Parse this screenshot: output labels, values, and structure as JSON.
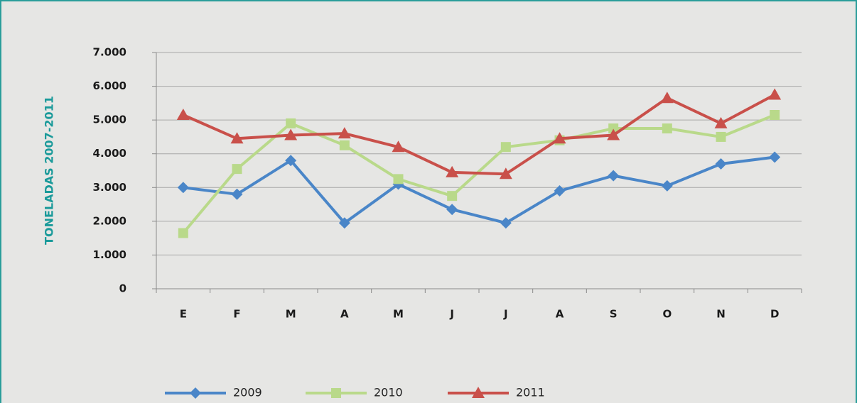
{
  "chart_data": {
    "type": "line",
    "ylabel": "TONELADAS 2007-2011",
    "categories": [
      "E",
      "F",
      "M",
      "A",
      "M",
      "J",
      "J",
      "A",
      "S",
      "O",
      "N",
      "D"
    ],
    "series": [
      {
        "name": "2009",
        "color": "#4a86c8",
        "marker": "diamond",
        "values": [
          3000,
          2800,
          3800,
          1950,
          3100,
          2350,
          1950,
          2900,
          3350,
          3050,
          3700,
          3900
        ]
      },
      {
        "name": "2010",
        "color": "#b9d98a",
        "marker": "square",
        "values": [
          1650,
          3550,
          4900,
          4250,
          3250,
          2750,
          4200,
          4400,
          4750,
          4750,
          4500,
          5150
        ]
      },
      {
        "name": "2011",
        "color": "#c9504a",
        "marker": "triangle",
        "values": [
          5150,
          4450,
          4550,
          4600,
          4200,
          3450,
          3400,
          4450,
          4550,
          5650,
          4900,
          5750
        ]
      }
    ],
    "ylim": [
      0,
      7000
    ],
    "yticks": [
      0,
      {
        "value": 1000,
        "label": "1.000"
      },
      {
        "value": 2000,
        "label": "2.000"
      },
      {
        "value": 3000,
        "label": "3.000"
      },
      {
        "value": 4000,
        "label": "4.000"
      },
      {
        "value": 5000,
        "label": "5.000"
      },
      {
        "value": 6000,
        "label": "6.000"
      },
      {
        "value": 7000,
        "label": "7.000"
      }
    ],
    "grid": true,
    "legend": "bottom"
  }
}
